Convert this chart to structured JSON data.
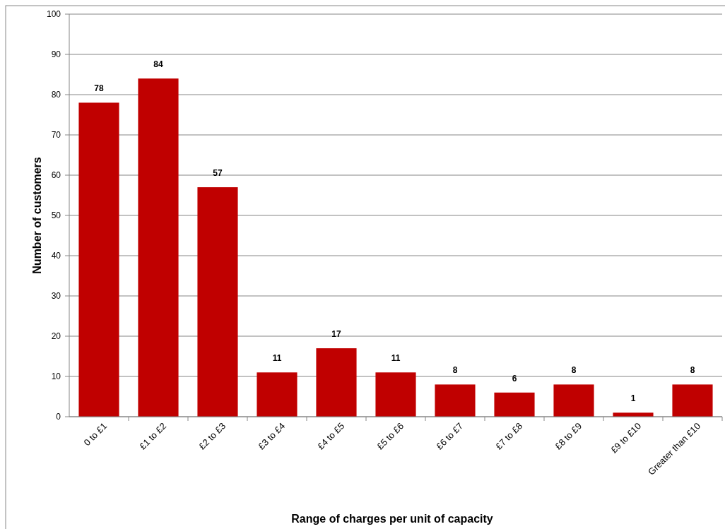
{
  "chart_data": {
    "type": "bar",
    "xlabel": "Range of charges per unit of capacity",
    "ylabel": "Number of customers",
    "categories": [
      "0 to £1",
      "£1 to £2",
      "£2 to £3",
      "£3 to £4",
      "£4 to £5",
      "£5 to £6",
      "£6 to £7",
      "£7 to £8",
      "£8 to £9",
      "£9 to £10",
      "Greater than £10"
    ],
    "values": [
      78,
      84,
      57,
      11,
      17,
      11,
      8,
      6,
      8,
      1,
      8
    ],
    "color": "#c00000",
    "ylim": [
      0,
      100
    ],
    "yticks": [
      0,
      10,
      20,
      30,
      40,
      50,
      60,
      70,
      80,
      90,
      100
    ],
    "grid": "y",
    "data_labels": true
  }
}
